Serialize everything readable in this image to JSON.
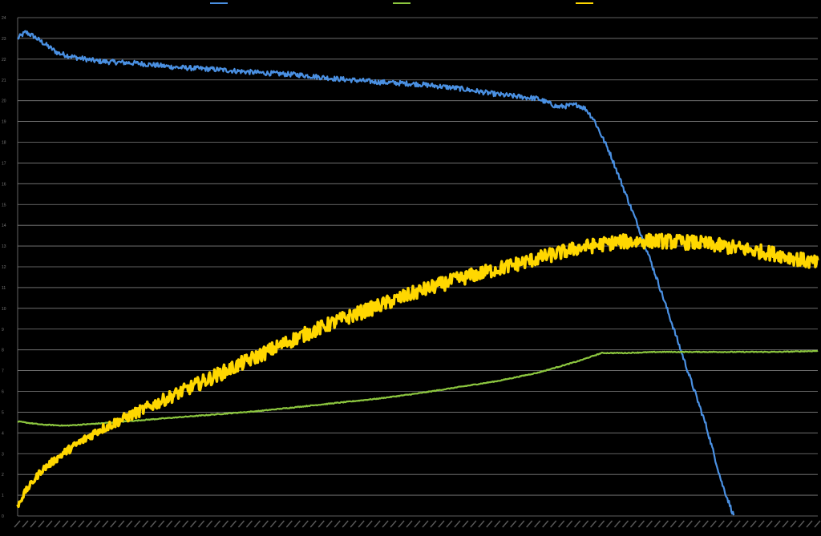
{
  "chart_data": {
    "type": "line",
    "title": "",
    "xlabel": "",
    "ylabel": "",
    "legend_position": "top-center",
    "grid": true,
    "background": "#000000",
    "gridline_color": "#7f7f7f",
    "ylim": [
      0,
      24
    ],
    "y_ticks": [
      0,
      1,
      2,
      3,
      4,
      5,
      6,
      7,
      8,
      9,
      10,
      11,
      12,
      13,
      14,
      15,
      16,
      17,
      18,
      19,
      20,
      21,
      22,
      23,
      24
    ],
    "xlim": [
      0,
      1000
    ],
    "x_tick_count": 100,
    "series": [
      {
        "name": "",
        "color": "#4a90e2",
        "noise": 0.12,
        "points": [
          [
            0,
            23.0
          ],
          [
            10,
            23.3
          ],
          [
            20,
            23.1
          ],
          [
            50,
            22.3
          ],
          [
            70,
            22.1
          ],
          [
            100,
            21.9
          ],
          [
            150,
            21.8
          ],
          [
            200,
            21.6
          ],
          [
            250,
            21.5
          ],
          [
            300,
            21.35
          ],
          [
            350,
            21.25
          ],
          [
            400,
            21.05
          ],
          [
            450,
            20.9
          ],
          [
            500,
            20.8
          ],
          [
            550,
            20.6
          ],
          [
            600,
            20.3
          ],
          [
            650,
            20.1
          ],
          [
            675,
            19.7
          ],
          [
            700,
            19.8
          ],
          [
            710,
            19.6
          ],
          [
            720,
            19.1
          ],
          [
            740,
            17.5
          ],
          [
            760,
            15.5
          ],
          [
            780,
            13.5
          ],
          [
            800,
            11.3
          ],
          [
            820,
            9.0
          ],
          [
            840,
            6.7
          ],
          [
            860,
            4.4
          ],
          [
            880,
            1.6
          ],
          [
            895,
            0
          ]
        ]
      },
      {
        "name": "",
        "color": "#8cc63f",
        "noise": 0.02,
        "points": [
          [
            0,
            4.55
          ],
          [
            30,
            4.4
          ],
          [
            60,
            4.35
          ],
          [
            100,
            4.45
          ],
          [
            150,
            4.6
          ],
          [
            200,
            4.75
          ],
          [
            250,
            4.9
          ],
          [
            300,
            5.05
          ],
          [
            350,
            5.25
          ],
          [
            400,
            5.45
          ],
          [
            450,
            5.65
          ],
          [
            500,
            5.9
          ],
          [
            550,
            6.2
          ],
          [
            600,
            6.5
          ],
          [
            650,
            6.9
          ],
          [
            700,
            7.45
          ],
          [
            730,
            7.85
          ],
          [
            760,
            7.85
          ],
          [
            800,
            7.9
          ],
          [
            850,
            7.9
          ],
          [
            900,
            7.9
          ],
          [
            950,
            7.9
          ],
          [
            1000,
            7.95
          ]
        ]
      },
      {
        "name": "",
        "color": "#ffd700",
        "noise": 0.35,
        "points": [
          [
            0,
            0.5
          ],
          [
            10,
            1.2
          ],
          [
            30,
            2.2
          ],
          [
            60,
            3.1
          ],
          [
            100,
            4.1
          ],
          [
            150,
            5.0
          ],
          [
            200,
            5.9
          ],
          [
            250,
            6.8
          ],
          [
            300,
            7.7
          ],
          [
            350,
            8.6
          ],
          [
            400,
            9.4
          ],
          [
            450,
            10.1
          ],
          [
            500,
            10.8
          ],
          [
            550,
            11.4
          ],
          [
            600,
            11.9
          ],
          [
            650,
            12.4
          ],
          [
            700,
            12.9
          ],
          [
            750,
            13.2
          ],
          [
            800,
            13.25
          ],
          [
            850,
            13.15
          ],
          [
            900,
            12.9
          ],
          [
            950,
            12.6
          ],
          [
            1000,
            12.15
          ]
        ]
      }
    ]
  }
}
